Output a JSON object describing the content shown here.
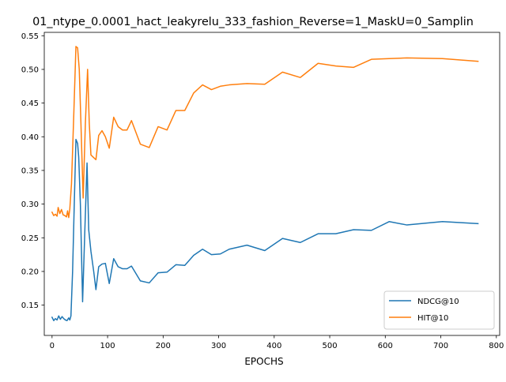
{
  "chart_data": {
    "type": "line",
    "title": "01_ntype_0.0001_hact_leakyrelu_333_fashion_Reverse=1_MaskU=0_Samplin",
    "xlabel": "EPOCHS",
    "ylabel": "",
    "xlim": [
      -14,
      806
    ],
    "ylim": [
      0.105,
      0.555
    ],
    "xticks": [
      0,
      100,
      200,
      300,
      400,
      500,
      600,
      700,
      800
    ],
    "yticks": [
      0.15,
      0.2,
      0.25,
      0.3,
      0.35,
      0.4,
      0.45,
      0.5,
      0.55
    ],
    "ytick_labels": [
      "0.15",
      "0.20",
      "0.25",
      "0.30",
      "0.35",
      "0.40",
      "0.45",
      "0.50",
      "0.55"
    ],
    "grid": false,
    "legend_position": "lower-right",
    "series": [
      {
        "name": "NDCG@10",
        "color": "#1f77b4",
        "points": [
          [
            0,
            0.132
          ],
          [
            3,
            0.127
          ],
          [
            6,
            0.13
          ],
          [
            9,
            0.128
          ],
          [
            12,
            0.134
          ],
          [
            15,
            0.129
          ],
          [
            18,
            0.133
          ],
          [
            21,
            0.13
          ],
          [
            24,
            0.128
          ],
          [
            27,
            0.127
          ],
          [
            30,
            0.131
          ],
          [
            32,
            0.128
          ],
          [
            34,
            0.134
          ],
          [
            37,
            0.2
          ],
          [
            40,
            0.3
          ],
          [
            43,
            0.396
          ],
          [
            46,
            0.39
          ],
          [
            48,
            0.37
          ],
          [
            51,
            0.3
          ],
          [
            55,
            0.155
          ],
          [
            59,
            0.26
          ],
          [
            63,
            0.361
          ],
          [
            66,
            0.262
          ],
          [
            70,
            0.23
          ],
          [
            75,
            0.2
          ],
          [
            79,
            0.173
          ],
          [
            84,
            0.207
          ],
          [
            90,
            0.211
          ],
          [
            96,
            0.212
          ],
          [
            103,
            0.182
          ],
          [
            111,
            0.219
          ],
          [
            119,
            0.207
          ],
          [
            127,
            0.204
          ],
          [
            135,
            0.204
          ],
          [
            143,
            0.208
          ],
          [
            159,
            0.186
          ],
          [
            175,
            0.183
          ],
          [
            191,
            0.198
          ],
          [
            207,
            0.199
          ],
          [
            223,
            0.21
          ],
          [
            239,
            0.209
          ],
          [
            255,
            0.224
          ],
          [
            271,
            0.233
          ],
          [
            287,
            0.225
          ],
          [
            303,
            0.226
          ],
          [
            319,
            0.233
          ],
          [
            351,
            0.239
          ],
          [
            383,
            0.231
          ],
          [
            415,
            0.249
          ],
          [
            447,
            0.243
          ],
          [
            479,
            0.256
          ],
          [
            511,
            0.256
          ],
          [
            543,
            0.262
          ],
          [
            575,
            0.261
          ],
          [
            607,
            0.274
          ],
          [
            639,
            0.269
          ],
          [
            703,
            0.274
          ],
          [
            767,
            0.271
          ]
        ]
      },
      {
        "name": "HIT@10",
        "color": "#ff7f0e",
        "points": [
          [
            0,
            0.288
          ],
          [
            3,
            0.283
          ],
          [
            6,
            0.285
          ],
          [
            9,
            0.282
          ],
          [
            11,
            0.295
          ],
          [
            14,
            0.286
          ],
          [
            17,
            0.292
          ],
          [
            20,
            0.284
          ],
          [
            23,
            0.283
          ],
          [
            26,
            0.281
          ],
          [
            28,
            0.29
          ],
          [
            30,
            0.28
          ],
          [
            32,
            0.293
          ],
          [
            35,
            0.33
          ],
          [
            39,
            0.43
          ],
          [
            43,
            0.534
          ],
          [
            46,
            0.532
          ],
          [
            49,
            0.5
          ],
          [
            52,
            0.42
          ],
          [
            56,
            0.309
          ],
          [
            60,
            0.42
          ],
          [
            64,
            0.5
          ],
          [
            67,
            0.42
          ],
          [
            70,
            0.373
          ],
          [
            75,
            0.369
          ],
          [
            79,
            0.366
          ],
          [
            84,
            0.402
          ],
          [
            90,
            0.409
          ],
          [
            96,
            0.4
          ],
          [
            103,
            0.383
          ],
          [
            111,
            0.429
          ],
          [
            119,
            0.415
          ],
          [
            127,
            0.41
          ],
          [
            135,
            0.41
          ],
          [
            143,
            0.424
          ],
          [
            159,
            0.389
          ],
          [
            175,
            0.384
          ],
          [
            191,
            0.415
          ],
          [
            207,
            0.41
          ],
          [
            223,
            0.439
          ],
          [
            239,
            0.439
          ],
          [
            255,
            0.465
          ],
          [
            271,
            0.477
          ],
          [
            287,
            0.47
          ],
          [
            303,
            0.475
          ],
          [
            319,
            0.477
          ],
          [
            351,
            0.479
          ],
          [
            383,
            0.478
          ],
          [
            415,
            0.496
          ],
          [
            447,
            0.488
          ],
          [
            479,
            0.509
          ],
          [
            511,
            0.505
          ],
          [
            543,
            0.503
          ],
          [
            575,
            0.515
          ],
          [
            607,
            0.516
          ],
          [
            639,
            0.517
          ],
          [
            703,
            0.516
          ],
          [
            767,
            0.512
          ]
        ]
      }
    ]
  }
}
